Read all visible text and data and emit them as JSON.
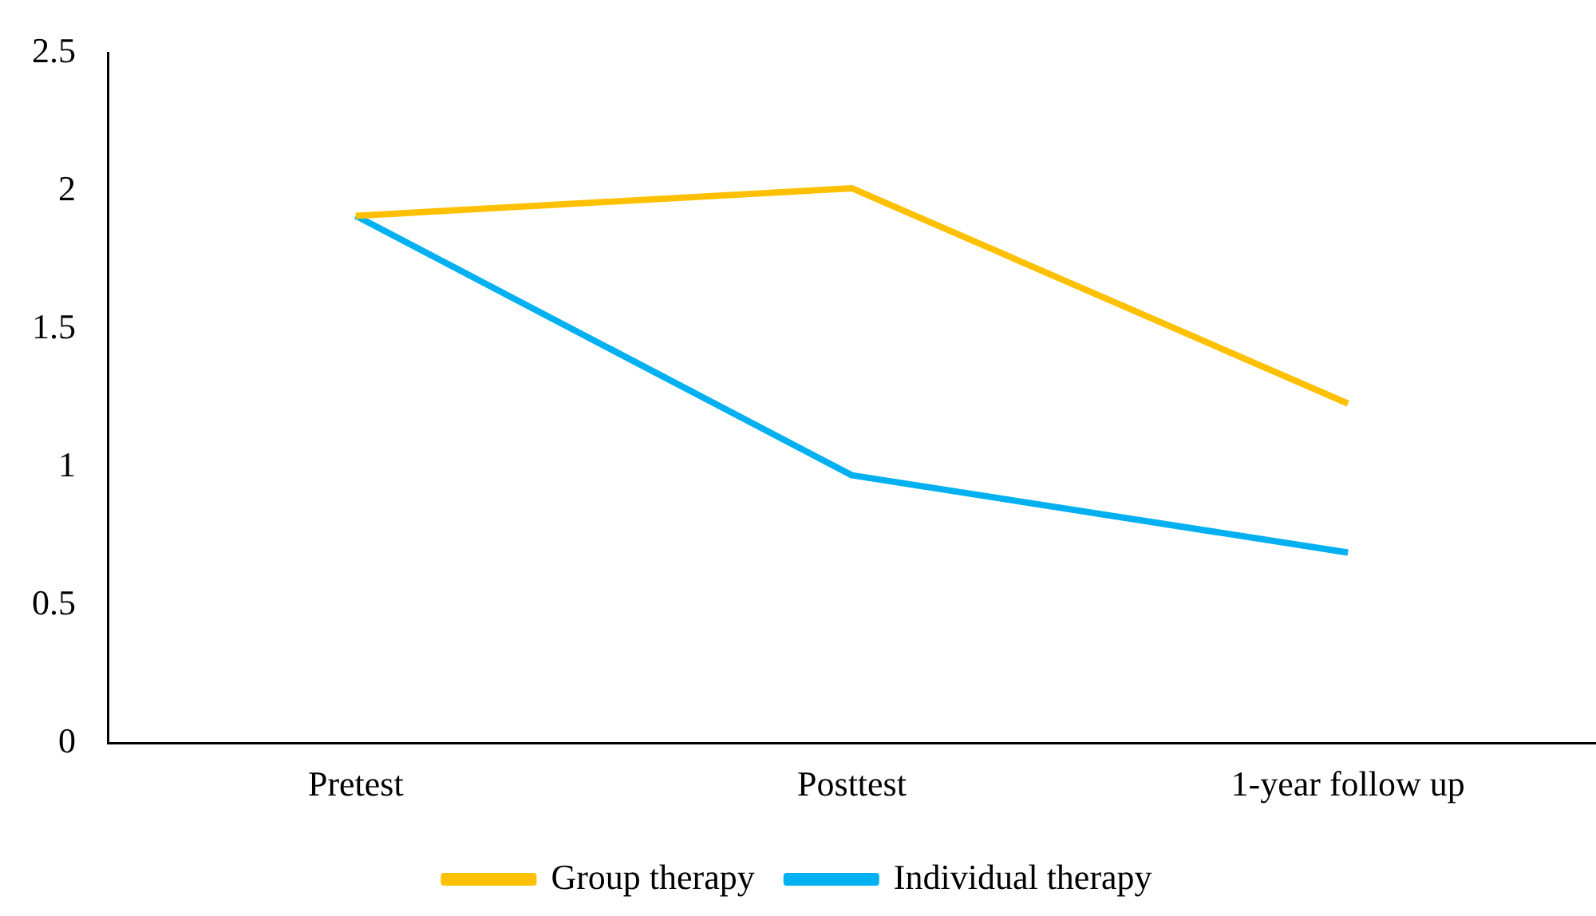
{
  "chart_data": {
    "type": "line",
    "categories": [
      "Pretest",
      "Posttest",
      "1-year follow up"
    ],
    "series": [
      {
        "name": "Group therapy",
        "color": "#ffc000",
        "values": [
          1.91,
          2.01,
          1.23
        ]
      },
      {
        "name": "Individual therapy",
        "color": "#00b0f0",
        "values": [
          1.91,
          0.97,
          0.69
        ]
      }
    ],
    "ylim": [
      0,
      2.5
    ],
    "yticks": [
      0,
      0.5,
      1,
      1.5,
      2,
      2.5
    ],
    "grid": false,
    "legend": "bottom",
    "marker": "none",
    "line_style": "solid"
  }
}
